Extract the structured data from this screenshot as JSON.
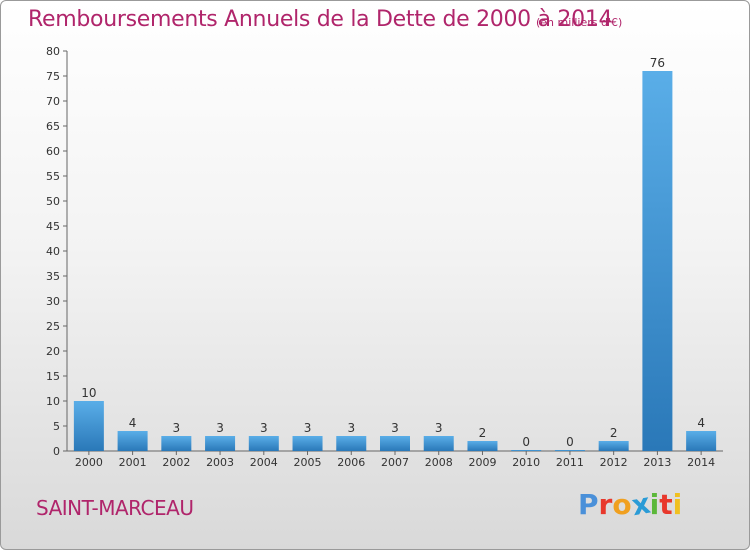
{
  "header": {
    "title": "Remboursements Annuels de la Dette de 2000 à 2014",
    "subtitle": "(en milliers d'€)"
  },
  "footer": {
    "town": "SAINT-MARCEAU",
    "logo": [
      "P",
      "r",
      "o",
      "x",
      "i",
      "t",
      "i"
    ],
    "logo_colors": [
      "#4a90d9",
      "#e8382c",
      "#f0a020",
      "#2a9bd6",
      "#5cb83a",
      "#e8382c",
      "#f0c020"
    ]
  },
  "colors": {
    "bar_light": "#5aaee8",
    "bar_dark": "#2a78b8",
    "title": "#b0256b"
  },
  "chart_data": {
    "type": "bar",
    "title": "Remboursements Annuels de la Dette de 2000 à 2014",
    "categories": [
      "2000",
      "2001",
      "2002",
      "2003",
      "2004",
      "2005",
      "2006",
      "2007",
      "2008",
      "2009",
      "2010",
      "2011",
      "2012",
      "2013",
      "2014"
    ],
    "values": [
      10,
      4,
      3,
      3,
      3,
      3,
      3,
      3,
      3,
      2,
      0,
      0,
      2,
      76,
      4
    ],
    "value_labels": [
      "10",
      "4",
      "3",
      "3",
      "3",
      "3",
      "3",
      "3",
      "3",
      "2",
      "0",
      "0",
      "2",
      "76",
      "4"
    ],
    "ylim": [
      0,
      80
    ],
    "yticks": [
      0,
      5,
      10,
      15,
      20,
      25,
      30,
      35,
      40,
      45,
      50,
      55,
      60,
      65,
      70,
      75,
      80
    ],
    "grid": false,
    "legend": "none"
  }
}
